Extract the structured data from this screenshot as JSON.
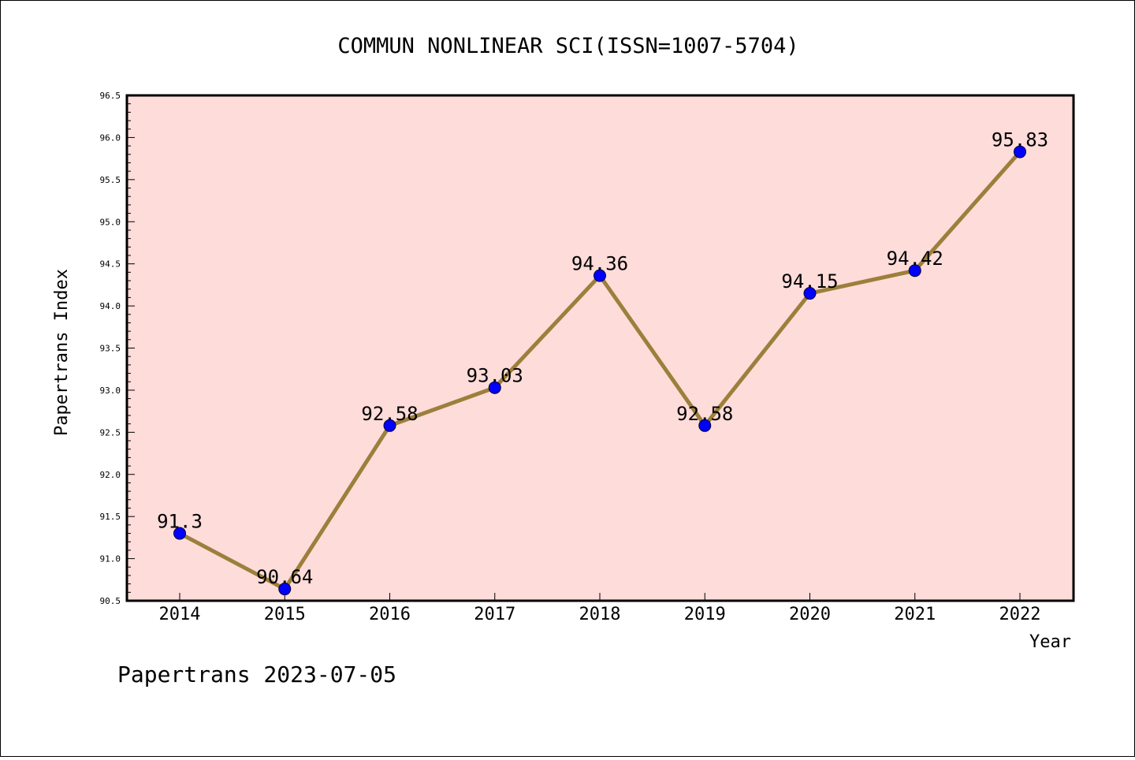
{
  "chart_data": {
    "type": "line",
    "title": "COMMUN NONLINEAR SCI(ISSN=1007-5704)",
    "xlabel": "Year",
    "ylabel": "Papertrans Index",
    "categories": [
      "2014",
      "2015",
      "2016",
      "2017",
      "2018",
      "2019",
      "2020",
      "2021",
      "2022"
    ],
    "values": [
      91.3,
      90.64,
      92.58,
      93.03,
      94.36,
      92.58,
      94.15,
      94.42,
      95.83
    ],
    "data_labels": [
      "91.3",
      "90.64",
      "92.58",
      "93.03",
      "94.36",
      "92.58",
      "94.15",
      "94.42",
      "95.83"
    ],
    "ylim": [
      90.5,
      96.5
    ],
    "yticks": [
      "90.5",
      "91.0",
      "91.5",
      "92.0",
      "92.5",
      "93.0",
      "93.5",
      "94.0",
      "94.5",
      "95.0",
      "95.5",
      "96.0",
      "96.5"
    ],
    "colors": {
      "plot_background": "#fddcda",
      "line": "#9c7f3b",
      "marker": "#0000ff"
    },
    "grid": false,
    "legend": "none"
  },
  "footer": {
    "text": "Papertrans 2023-07-05"
  }
}
